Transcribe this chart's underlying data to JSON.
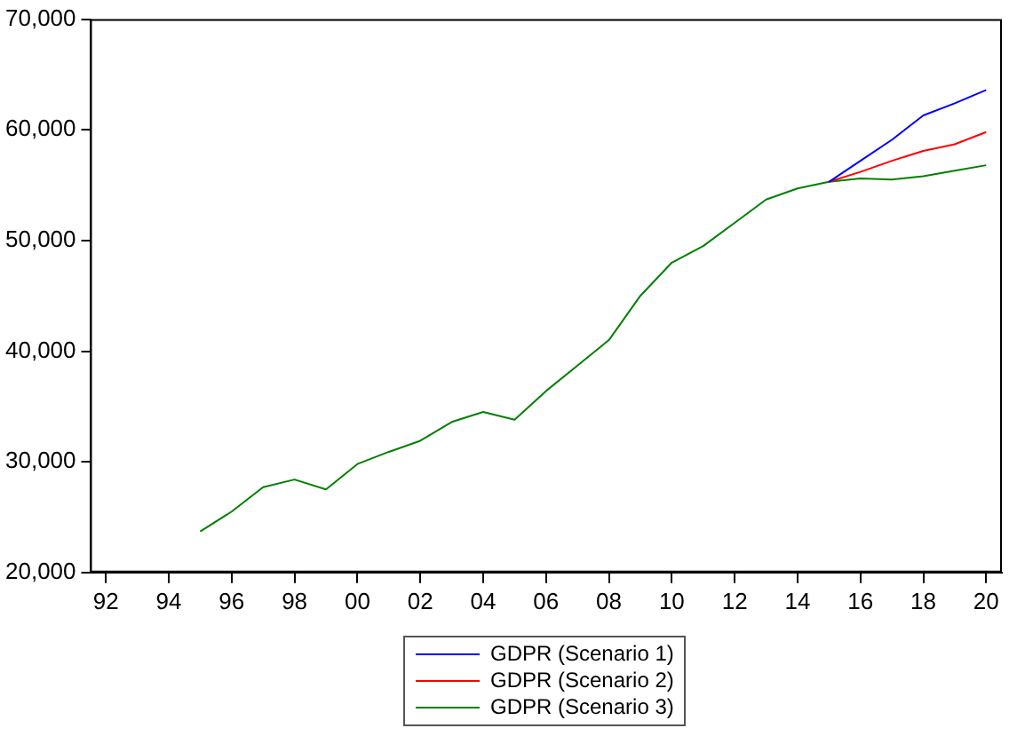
{
  "chart_data": {
    "type": "line",
    "x": [
      1995,
      1996,
      1997,
      1998,
      1999,
      2000,
      2001,
      2002,
      2003,
      2004,
      2005,
      2006,
      2007,
      2008,
      2009,
      2010,
      2011,
      2012,
      2013,
      2014,
      2015,
      2016,
      2017,
      2018,
      2019,
      2020
    ],
    "series": [
      {
        "name": "GDPR (Scenario 1)",
        "color": "#0000ff",
        "values": [
          null,
          null,
          null,
          null,
          null,
          null,
          null,
          null,
          null,
          null,
          null,
          null,
          null,
          null,
          null,
          null,
          null,
          null,
          null,
          null,
          55300,
          57200,
          59100,
          61300,
          62400,
          63600
        ]
      },
      {
        "name": "GDPR (Scenario 2)",
        "color": "#ff0000",
        "values": [
          null,
          null,
          null,
          null,
          null,
          null,
          null,
          null,
          null,
          null,
          null,
          null,
          null,
          null,
          null,
          null,
          null,
          null,
          null,
          null,
          55300,
          56200,
          57200,
          58100,
          58700,
          59800
        ]
      },
      {
        "name": "GDPR (Scenario 3)",
        "color": "#008000",
        "values": [
          23700,
          25500,
          27700,
          28400,
          27500,
          29800,
          30900,
          31900,
          33600,
          34500,
          33800,
          36400,
          38700,
          41000,
          45000,
          48000,
          49500,
          51600,
          53700,
          54700,
          55300,
          55600,
          55500,
          55800,
          56300,
          56800
        ]
      }
    ],
    "xlim": [
      1991.5,
      2020.5
    ],
    "xticks": [
      {
        "value": 1992,
        "label": "92"
      },
      {
        "value": 1994,
        "label": "94"
      },
      {
        "value": 1996,
        "label": "96"
      },
      {
        "value": 1998,
        "label": "98"
      },
      {
        "value": 2000,
        "label": "00"
      },
      {
        "value": 2002,
        "label": "02"
      },
      {
        "value": 2004,
        "label": "04"
      },
      {
        "value": 2006,
        "label": "06"
      },
      {
        "value": 2008,
        "label": "08"
      },
      {
        "value": 2010,
        "label": "10"
      },
      {
        "value": 2012,
        "label": "12"
      },
      {
        "value": 2014,
        "label": "14"
      },
      {
        "value": 2016,
        "label": "16"
      },
      {
        "value": 2018,
        "label": "18"
      },
      {
        "value": 2020,
        "label": "20"
      }
    ],
    "ylim": [
      20000,
      70000
    ],
    "yticks": [
      {
        "value": 20000,
        "label": "20,000"
      },
      {
        "value": 30000,
        "label": "30,000"
      },
      {
        "value": 40000,
        "label": "40,000"
      },
      {
        "value": 50000,
        "label": "50,000"
      },
      {
        "value": 60000,
        "label": "60,000"
      },
      {
        "value": 70000,
        "label": "70,000"
      }
    ],
    "grid": false,
    "legend": "bottom",
    "marker": "none",
    "line_style": "solid"
  }
}
